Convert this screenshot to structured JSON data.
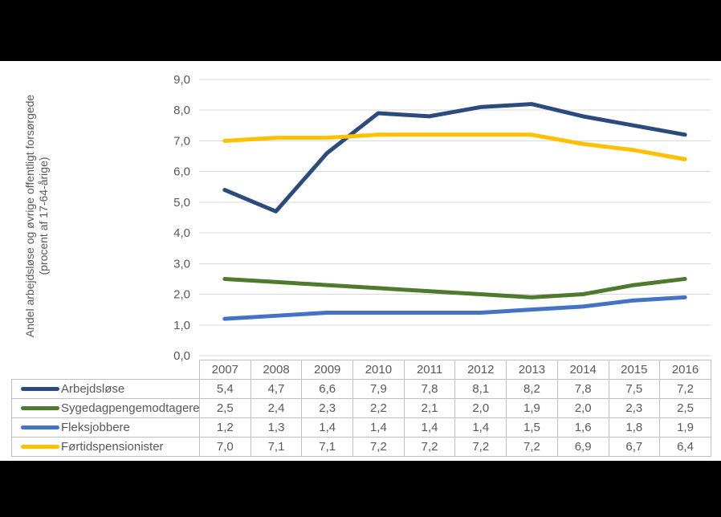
{
  "chart_data": {
    "type": "line",
    "title": "",
    "ylabel_line1": "Andel arbejdsløse og øvrige offentligt forsørgede",
    "ylabel_line2": "(procent af 17-64-årige)",
    "categories": [
      "2007",
      "2008",
      "2009",
      "2010",
      "2011",
      "2012",
      "2013",
      "2014",
      "2015",
      "2016"
    ],
    "series": [
      {
        "name": "Arbejdsløse",
        "color": "#2A4B7C",
        "values": [
          5.4,
          4.7,
          6.6,
          7.9,
          7.8,
          8.1,
          8.2,
          7.8,
          7.5,
          7.2
        ],
        "display": [
          "5,4",
          "4,7",
          "6,6",
          "7,9",
          "7,8",
          "8,1",
          "8,2",
          "7,8",
          "7,5",
          "7,2"
        ]
      },
      {
        "name": "Sygedagpengemodtagere",
        "color": "#4E7A2D",
        "values": [
          2.5,
          2.4,
          2.3,
          2.2,
          2.1,
          2.0,
          1.9,
          2.0,
          2.3,
          2.5
        ],
        "display": [
          "2,5",
          "2,4",
          "2,3",
          "2,2",
          "2,1",
          "2,0",
          "1,9",
          "2,0",
          "2,3",
          "2,5"
        ]
      },
      {
        "name": "Fleksjobbere",
        "color": "#4472C4",
        "values": [
          1.2,
          1.3,
          1.4,
          1.4,
          1.4,
          1.4,
          1.5,
          1.6,
          1.8,
          1.9
        ],
        "display": [
          "1,2",
          "1,3",
          "1,4",
          "1,4",
          "1,4",
          "1,4",
          "1,5",
          "1,6",
          "1,8",
          "1,9"
        ]
      },
      {
        "name": "Førtidspensionister",
        "color": "#FFC000",
        "values": [
          7.0,
          7.1,
          7.1,
          7.2,
          7.2,
          7.2,
          7.2,
          6.9,
          6.7,
          6.4
        ],
        "display": [
          "7,0",
          "7,1",
          "7,1",
          "7,2",
          "7,2",
          "7,2",
          "7,2",
          "6,9",
          "6,7",
          "6,4"
        ]
      }
    ],
    "ylim": [
      0,
      9
    ],
    "ytick_labels": [
      "0,0",
      "1,0",
      "2,0",
      "3,0",
      "4,0",
      "5,0",
      "6,0",
      "7,0",
      "8,0",
      "9,0"
    ],
    "grid": true,
    "legend_position": "table-rows-left",
    "colors": {
      "gridline": "#D9D9D9",
      "axis_text": "#595959",
      "table_border": "#BFBFBF",
      "table_text": "#595959",
      "chart_background": "#FFFFFF",
      "frame_background": "#000000"
    }
  }
}
